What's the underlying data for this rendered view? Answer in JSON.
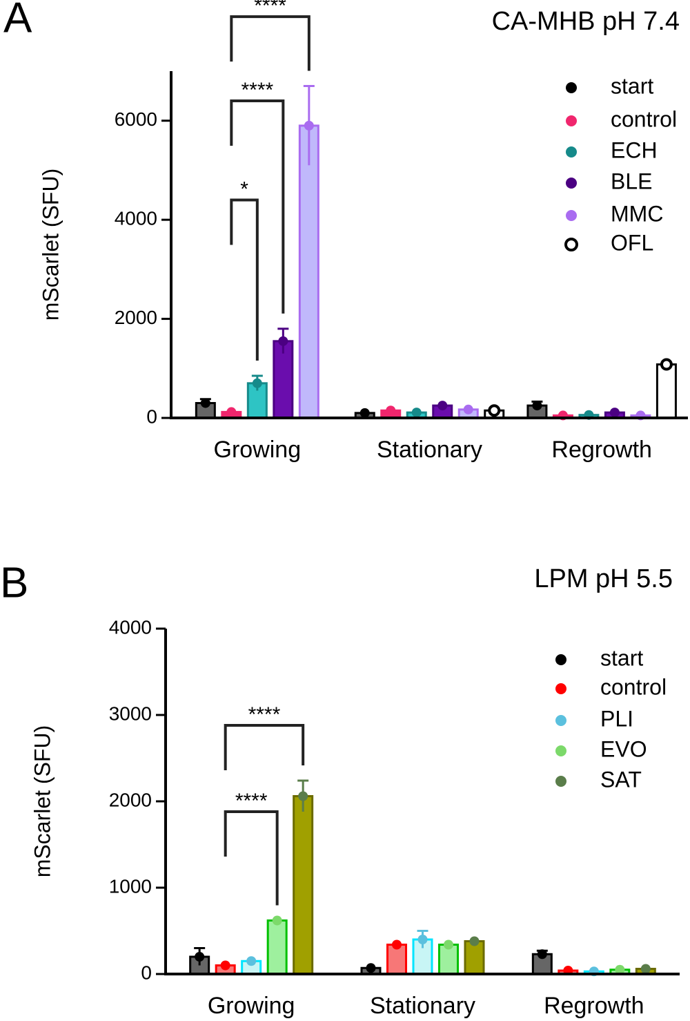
{
  "chart_data": [
    {
      "type": "bar",
      "panel": "A",
      "title": "CA-MHB pH 7.4",
      "y_label": "mScarlet (SFU)",
      "categories": [
        "Growing",
        "Stationary",
        "Regrowth"
      ],
      "ylim": [
        0,
        7000
      ],
      "yticks": [
        0,
        2000,
        4000,
        6000
      ],
      "series": [
        {
          "name": "start",
          "color": "#000000",
          "fill": "#666666",
          "values": [
            300,
            100,
            250
          ],
          "errors": [
            80,
            null,
            80
          ]
        },
        {
          "name": "control",
          "color": "#f0266d",
          "fill": "#f0266d",
          "values": [
            120,
            150,
            50
          ],
          "errors": [
            null,
            null,
            null
          ]
        },
        {
          "name": "ECH",
          "color": "#168a8a",
          "fill": "#2ec4c4",
          "values": [
            700,
            110,
            60
          ],
          "errors": [
            150,
            null,
            null
          ]
        },
        {
          "name": "BLE",
          "color": "#4b0082",
          "fill": "#6a0dad",
          "values": [
            1550,
            250,
            110
          ],
          "errors": [
            250,
            null,
            null
          ]
        },
        {
          "name": "MMC",
          "color": "#a96cf0",
          "fill": "#c0b8fb",
          "values": [
            5900,
            170,
            50
          ],
          "errors": [
            800,
            null,
            null
          ]
        },
        {
          "name": "OFL",
          "color": "#000000",
          "fill": "#ffffff",
          "hollow": true,
          "values": [
            null,
            150,
            1080
          ],
          "errors": [
            null,
            null,
            null
          ]
        }
      ],
      "annotations": [
        {
          "text": "*",
          "category": 0,
          "from": 1,
          "to": 2,
          "y": 4400
        },
        {
          "text": "****",
          "category": 0,
          "from": 1,
          "to": 3,
          "y": 6400
        },
        {
          "text": "****",
          "category": 0,
          "from": 1,
          "to": 4,
          "y": 8100
        }
      ]
    },
    {
      "type": "bar",
      "panel": "B",
      "title": "LPM pH 5.5",
      "y_label": "mScarlet (SFU)",
      "categories": [
        "Growing",
        "Stationary",
        "Regrowth"
      ],
      "ylim": [
        0,
        4000
      ],
      "yticks": [
        0,
        1000,
        2000,
        3000,
        4000
      ],
      "series": [
        {
          "name": "start",
          "color": "#000000",
          "fill": "#666666",
          "values": [
            200,
            70,
            230
          ],
          "errors": [
            100,
            null,
            40
          ]
        },
        {
          "name": "control",
          "color": "#ff0000",
          "fill": "#f77777",
          "values": [
            100,
            340,
            40
          ],
          "errors": [
            null,
            null,
            null
          ]
        },
        {
          "name": "PLI",
          "color": "#00e5ff",
          "fill": "#c8f5f5",
          "values": [
            150,
            400,
            30
          ],
          "errors": [
            null,
            100,
            null
          ]
        },
        {
          "name": "EVO",
          "color": "#00c000",
          "fill": "#9ef09e",
          "values": [
            620,
            340,
            50
          ],
          "errors": [
            null,
            null,
            null
          ]
        },
        {
          "name": "SAT",
          "color": "#6b6b00",
          "fill": "#a0a000",
          "values": [
            2060,
            380,
            60
          ],
          "errors": [
            180,
            null,
            null
          ]
        }
      ],
      "dot_colors": [
        "#000000",
        "#ff0000",
        "#5bc0de",
        "#7cd96a",
        "#5a7d4a"
      ],
      "annotations": [
        {
          "text": "****",
          "category": 0,
          "from": 1,
          "to": 3,
          "y": 1880
        },
        {
          "text": "****",
          "category": 0,
          "from": 1,
          "to": 4,
          "y": 2880
        }
      ]
    }
  ]
}
